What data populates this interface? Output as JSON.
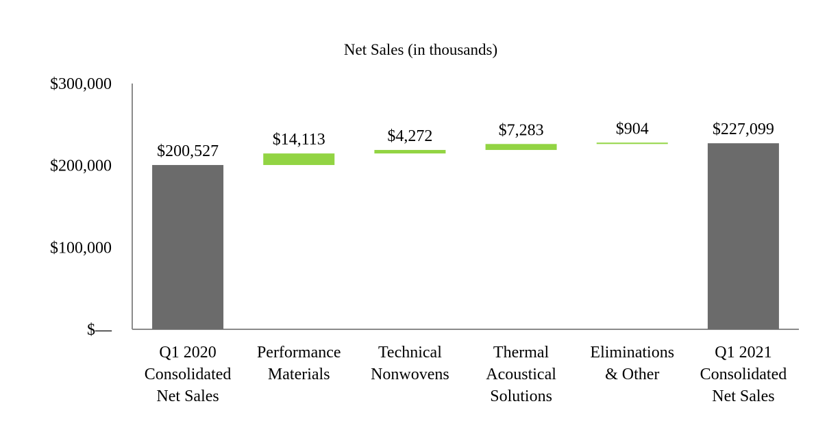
{
  "chart_data": {
    "type": "waterfall",
    "title": "Net Sales (in thousands)",
    "xlabel": "",
    "ylabel": "",
    "ylim": [
      0,
      300000
    ],
    "y_ticks": [
      {
        "value": 0,
        "label": "$—"
      },
      {
        "value": 100000,
        "label": "$100,000"
      },
      {
        "value": 200000,
        "label": "$200,000"
      },
      {
        "value": 300000,
        "label": "$300,000"
      }
    ],
    "bars": [
      {
        "category": [
          "Q1 2020",
          "Consolidated",
          "Net Sales"
        ],
        "kind": "total",
        "start": 0,
        "end": 200527,
        "label": "$200,527"
      },
      {
        "category": [
          "Performance",
          "Materials"
        ],
        "kind": "delta",
        "start": 200527,
        "end": 214640,
        "label": "$14,113"
      },
      {
        "category": [
          "Technical",
          "Nonwovens"
        ],
        "kind": "delta",
        "start": 214640,
        "end": 218912,
        "label": "$4,272"
      },
      {
        "category": [
          "Thermal",
          "Acoustical",
          "Solutions"
        ],
        "kind": "delta",
        "start": 218912,
        "end": 226195,
        "label": "$7,283"
      },
      {
        "category": [
          "Eliminations",
          "& Other"
        ],
        "kind": "delta",
        "start": 226195,
        "end": 227099,
        "label": "$904"
      },
      {
        "category": [
          "Q1 2021",
          "Consolidated",
          "Net Sales"
        ],
        "kind": "total",
        "start": 0,
        "end": 227099,
        "label": "$227,099"
      }
    ],
    "colors": {
      "total": "#6b6b6b",
      "delta": "#92d443",
      "axis": "#8a8a8a"
    }
  }
}
